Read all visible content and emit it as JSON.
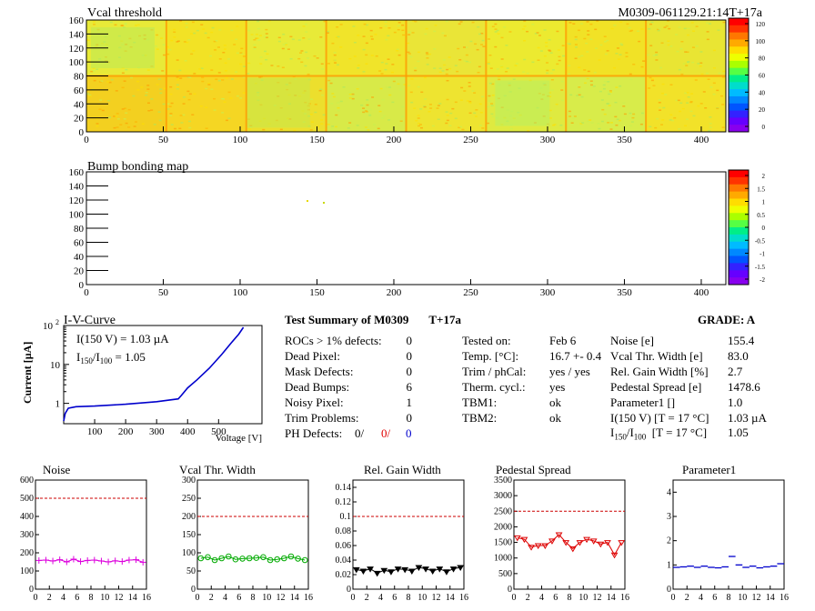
{
  "header": {
    "vcal_title": "Vcal threshold",
    "module_id": "M0309-061129.21:14T+17a",
    "bump_title": "Bump bonding map"
  },
  "maps": {
    "x_ticks": [
      "0",
      "50",
      "100",
      "150",
      "200",
      "250",
      "300",
      "350",
      "400"
    ],
    "y_ticks": [
      "0",
      "20",
      "40",
      "60",
      "80",
      "100",
      "120",
      "140",
      "160"
    ],
    "vcal_palette_labels": [
      "120",
      "100",
      "80",
      "60",
      "40",
      "20",
      "0"
    ],
    "bump_palette_labels": [
      "2",
      "1.5",
      "1",
      "0.5",
      "0",
      "-0.5",
      "-1",
      "-1.5",
      "-2"
    ],
    "vcal_roc_colors": [
      "#e8ea38",
      "#f2e225",
      "#e8ea38",
      "#f0e42a",
      "#eae537",
      "#ecea30",
      "#f1e226",
      "#e9e533",
      "#f3d020",
      "#f5d623",
      "#ecdf2d",
      "#d8ea48",
      "#eee430",
      "#dfea40",
      "#d8ec4a",
      "#f2e229"
    ]
  },
  "iv_curve": {
    "title": "I-V-Curve",
    "ylabel": "Current [µA]",
    "xlabel": "Voltage [V]",
    "annotation_1": "I(150 V) = 1.03 µA",
    "annotation_2_prefix": "I",
    "annotation_2_sub1": "150",
    "annotation_2_mid": "/I",
    "annotation_2_sub2": "100",
    "annotation_2_value": " =  1.05",
    "x_ticks": [
      "100",
      "200",
      "300",
      "400",
      "500"
    ],
    "y_ticks": [
      "1",
      "10",
      "10"
    ],
    "y_top_exp": "2",
    "color": "#0000cc"
  },
  "summary": {
    "title": "Test Summary of M0309",
    "temp_label": "T+17a",
    "grade": "GRADE:  A",
    "left_rows": [
      {
        "label": "ROCs > 1% defects:",
        "value": "0"
      },
      {
        "label": "Dead Pixel:",
        "value": "0"
      },
      {
        "label": "Mask Defects:",
        "value": "0"
      },
      {
        "label": "Dead Bumps:",
        "value": "6"
      },
      {
        "label": "Noisy Pixel:",
        "value": "1"
      },
      {
        "label": "Trim Problems:",
        "value": "0"
      }
    ],
    "ph_defects": {
      "label": "PH Defects:",
      "v1": "0/",
      "v2": "0/",
      "v3": "0"
    },
    "mid_rows": [
      {
        "label": "Tested on:",
        "value": "Feb 6"
      },
      {
        "label": "Temp. [°C]:",
        "value": "16.7 +- 0.4"
      },
      {
        "label": "Trim / phCal:",
        "value": "yes / yes"
      },
      {
        "label": "Therm. cycl.:",
        "value": "yes"
      },
      {
        "label": "TBM1:",
        "value": "ok"
      },
      {
        "label": "TBM2:",
        "value": "ok"
      }
    ],
    "right_rows": [
      {
        "label": "Noise [e]",
        "value": "155.4"
      },
      {
        "label": "Vcal Thr. Width [e]",
        "value": "83.0"
      },
      {
        "label": "Rel. Gain Width [%]",
        "value": "2.7"
      },
      {
        "label": "Pedestal Spread [e]",
        "value": "1478.6"
      },
      {
        "label": "Parameter1 []",
        "value": "1.0"
      },
      {
        "label": "I(150 V) [T = 17 °C]",
        "value": "1.03 µA"
      }
    ],
    "ratio_row": {
      "prefix": "I",
      "sub1": "150",
      "mid": "/I",
      "sub2": "100",
      "suffix": "  [T = 17 °C]",
      "value": "1.05"
    }
  },
  "chart_data": [
    {
      "type": "line",
      "title": "Noise",
      "x": [
        0,
        1,
        2,
        3,
        4,
        5,
        6,
        7,
        8,
        9,
        10,
        11,
        12,
        13,
        14,
        15
      ],
      "values": [
        158,
        160,
        155,
        162,
        150,
        165,
        152,
        158,
        160,
        155,
        150,
        156,
        152,
        160,
        162,
        148
      ],
      "ylim": [
        0,
        600
      ],
      "y_ticks": [
        0,
        100,
        200,
        300,
        400,
        500,
        600
      ],
      "threshold": 500,
      "color": "#dd00dd",
      "marker": "cross"
    },
    {
      "type": "line",
      "title": "Vcal Thr. Width",
      "x": [
        0,
        1,
        2,
        3,
        4,
        5,
        6,
        7,
        8,
        9,
        10,
        11,
        12,
        13,
        14,
        15
      ],
      "values": [
        85,
        88,
        80,
        85,
        90,
        82,
        84,
        85,
        86,
        88,
        80,
        82,
        85,
        90,
        84,
        80
      ],
      "ylim": [
        0,
        300
      ],
      "y_ticks": [
        0,
        50,
        100,
        150,
        200,
        250,
        300
      ],
      "threshold": 200,
      "color": "#00aa00",
      "marker": "circle"
    },
    {
      "type": "line",
      "title": "Rel. Gain Width",
      "x": [
        0,
        1,
        2,
        3,
        4,
        5,
        6,
        7,
        8,
        9,
        10,
        11,
        12,
        13,
        14,
        15
      ],
      "values": [
        0.027,
        0.025,
        0.028,
        0.022,
        0.026,
        0.024,
        0.028,
        0.027,
        0.025,
        0.03,
        0.028,
        0.025,
        0.028,
        0.024,
        0.028,
        0.03
      ],
      "ylim": [
        0,
        0.15
      ],
      "y_ticks": [
        0,
        0.02,
        0.04,
        0.06,
        0.08,
        0.1,
        0.12,
        0.14
      ],
      "threshold": 0.1,
      "color": "#000000",
      "marker": "triangle"
    },
    {
      "type": "line",
      "title": "Pedestal Spread",
      "x": [
        0,
        1,
        2,
        3,
        4,
        5,
        6,
        7,
        8,
        9,
        10,
        11,
        12,
        13,
        14,
        15
      ],
      "values": [
        1650,
        1600,
        1350,
        1400,
        1400,
        1550,
        1750,
        1500,
        1300,
        1500,
        1600,
        1550,
        1450,
        1500,
        1100,
        1500
      ],
      "ylim": [
        0,
        3500
      ],
      "y_ticks": [
        0,
        500,
        1000,
        1500,
        2000,
        2500,
        3000,
        3500
      ],
      "threshold": 2500,
      "color": "#dd0000",
      "marker": "triangle"
    },
    {
      "type": "line",
      "title": "Parameter1",
      "x": [
        0,
        1,
        2,
        3,
        4,
        5,
        6,
        7,
        8,
        9,
        10,
        11,
        12,
        13,
        14,
        15
      ],
      "values": [
        0.9,
        0.92,
        0.95,
        0.9,
        0.95,
        0.9,
        0.88,
        0.92,
        1.35,
        1.0,
        0.9,
        0.95,
        0.88,
        0.92,
        0.95,
        1.05
      ],
      "ylim": [
        0,
        4.5
      ],
      "y_ticks": [
        0,
        1,
        2,
        3,
        4
      ],
      "threshold": null,
      "color": "#0000cc",
      "marker": "dash"
    }
  ],
  "small_x_ticks": [
    "0",
    "2",
    "4",
    "6",
    "8",
    "10",
    "12",
    "14",
    "16"
  ]
}
